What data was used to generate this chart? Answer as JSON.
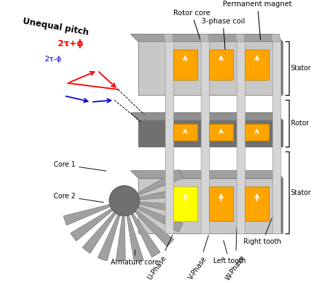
{
  "title": "",
  "fig_width": 4.74,
  "fig_height": 4.11,
  "dpi": 100,
  "bg_color": "#ffffff",
  "labels": {
    "unequal_pitch": "Unequal pitch",
    "tau_plus": "2τ+ϕ",
    "tau_minus": "2τ-ϕ",
    "rotor_core": "Rotor core",
    "permanent_magnet": "Permanent magnet",
    "three_phase_coil": "3-phase coil",
    "stator_top": "Stator",
    "rotor": "Rotor",
    "stator_bot": "Stator",
    "core1": "Core 1",
    "core2": "Core 2",
    "armature_core": "Armature core",
    "u_phase": "U-Phase",
    "v_phase": "V-Phase",
    "w_phase": "W-Phase",
    "left_tooth": "Left tooth",
    "right_tooth": "Right tooth"
  },
  "colors": {
    "orange": "#FFA500",
    "yellow": "#FFFF00",
    "gray_light": "#C8C8C8",
    "gray_mid": "#A0A0A0",
    "gray_dark": "#707070",
    "white": "#FFFFFF",
    "black": "#000000",
    "red": "#FF0000",
    "blue": "#0000CD",
    "arrow_color": "#000000"
  }
}
